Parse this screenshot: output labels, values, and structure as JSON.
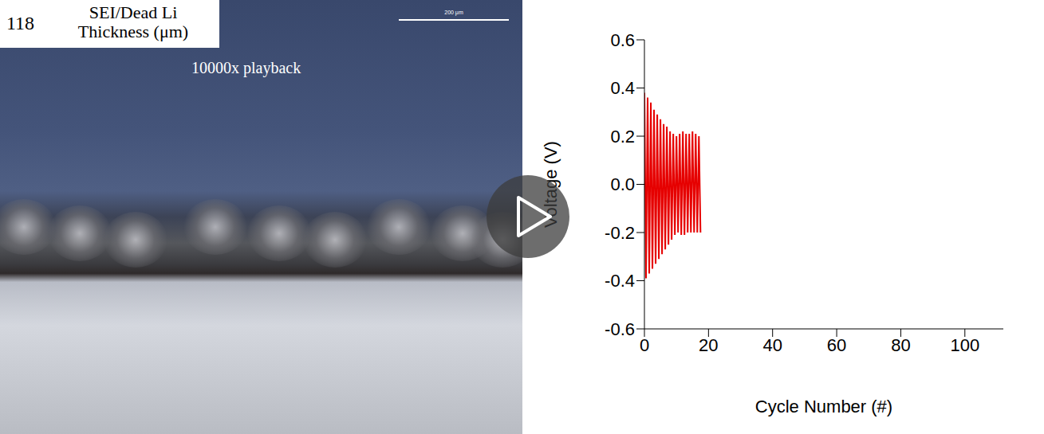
{
  "chart_data": {
    "type": "line",
    "x_label": "Cycle Number (#)",
    "y_label": "Voltage (V)",
    "xlim": [
      0,
      112
    ],
    "xticks": [
      0,
      20,
      40,
      60,
      80,
      100
    ],
    "ylim": [
      -0.6,
      0.6
    ],
    "yticks": [
      -0.6,
      -0.4,
      -0.2,
      {
        "value": 0,
        "label": "0.0"
      },
      0.2,
      0.4,
      0.6
    ],
    "grid": false,
    "series": [
      {
        "name": "Voltage",
        "color": "#e60000",
        "x": [
          0,
          0.5,
          1,
          1.5,
          2,
          2.5,
          3,
          3.5,
          4,
          4.5,
          5,
          5.5,
          6,
          6.5,
          7,
          7.5,
          8,
          8.5,
          9,
          9.5,
          10,
          10.5,
          11,
          11.5,
          12,
          12.5,
          13,
          13.5,
          14,
          14.5,
          15,
          15.5,
          16,
          16.5,
          17,
          17.5
        ],
        "values": [
          0.38,
          -0.39,
          0.36,
          -0.37,
          0.34,
          -0.35,
          0.31,
          -0.33,
          0.29,
          -0.31,
          0.27,
          -0.29,
          0.25,
          -0.27,
          0.24,
          -0.25,
          0.22,
          -0.23,
          0.21,
          -0.21,
          0.2,
          -0.2,
          0.21,
          -0.21,
          0.22,
          -0.21,
          0.21,
          -0.2,
          0.21,
          -0.2,
          0.22,
          -0.2,
          0.21,
          -0.2,
          0.2,
          -0.2
        ]
      }
    ]
  },
  "image_overlay": {
    "counter": 118,
    "label": "SEI/Dead Li Thickness (μm)",
    "playback": "10000x playback",
    "scale_bar": "200 μm"
  }
}
